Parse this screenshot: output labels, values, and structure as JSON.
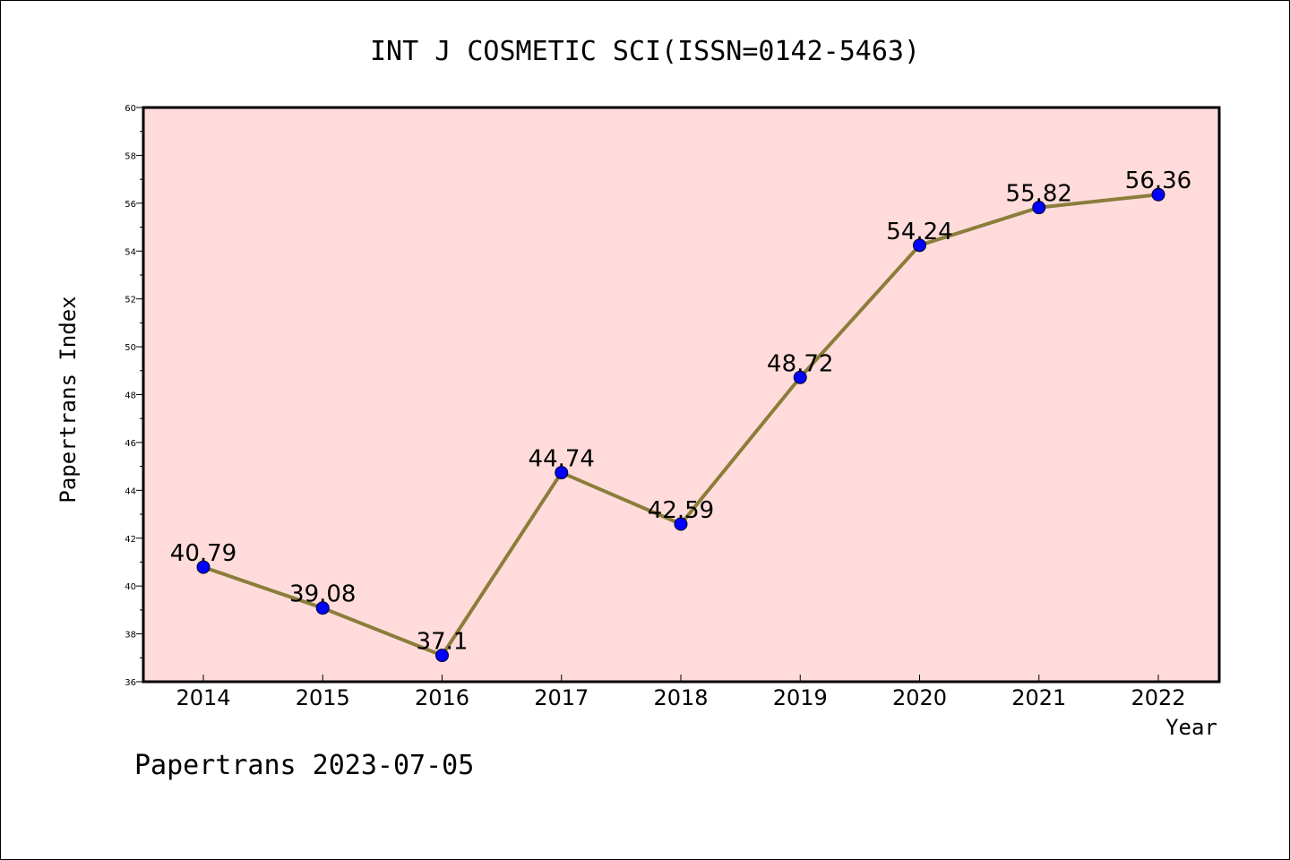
{
  "chart_data": {
    "type": "line",
    "title": "INT J COSMETIC SCI(ISSN=0142-5463)",
    "xlabel": "Year",
    "ylabel": "Papertrans Index",
    "footer": "Papertrans 2023-07-05",
    "categories": [
      "2014",
      "2015",
      "2016",
      "2017",
      "2018",
      "2019",
      "2020",
      "2021",
      "2022"
    ],
    "series": [
      {
        "values": [
          40.79,
          39.08,
          37.1,
          44.74,
          42.59,
          48.72,
          54.24,
          55.82,
          56.36
        ],
        "labels": [
          "40.79",
          "39.08",
          "37.1",
          "44.74",
          "42.59",
          "48.72",
          "54.24",
          "55.82",
          "56.36"
        ],
        "line_color": "#8b7d3a",
        "marker_color": "#0000ff"
      }
    ],
    "ylim": [
      36,
      60
    ],
    "yticks": [
      "36",
      "38",
      "40",
      "42",
      "44",
      "46",
      "48",
      "50",
      "52",
      "54",
      "56",
      "58",
      "60"
    ],
    "plot_background": "#ffdcdb",
    "grid": false
  }
}
